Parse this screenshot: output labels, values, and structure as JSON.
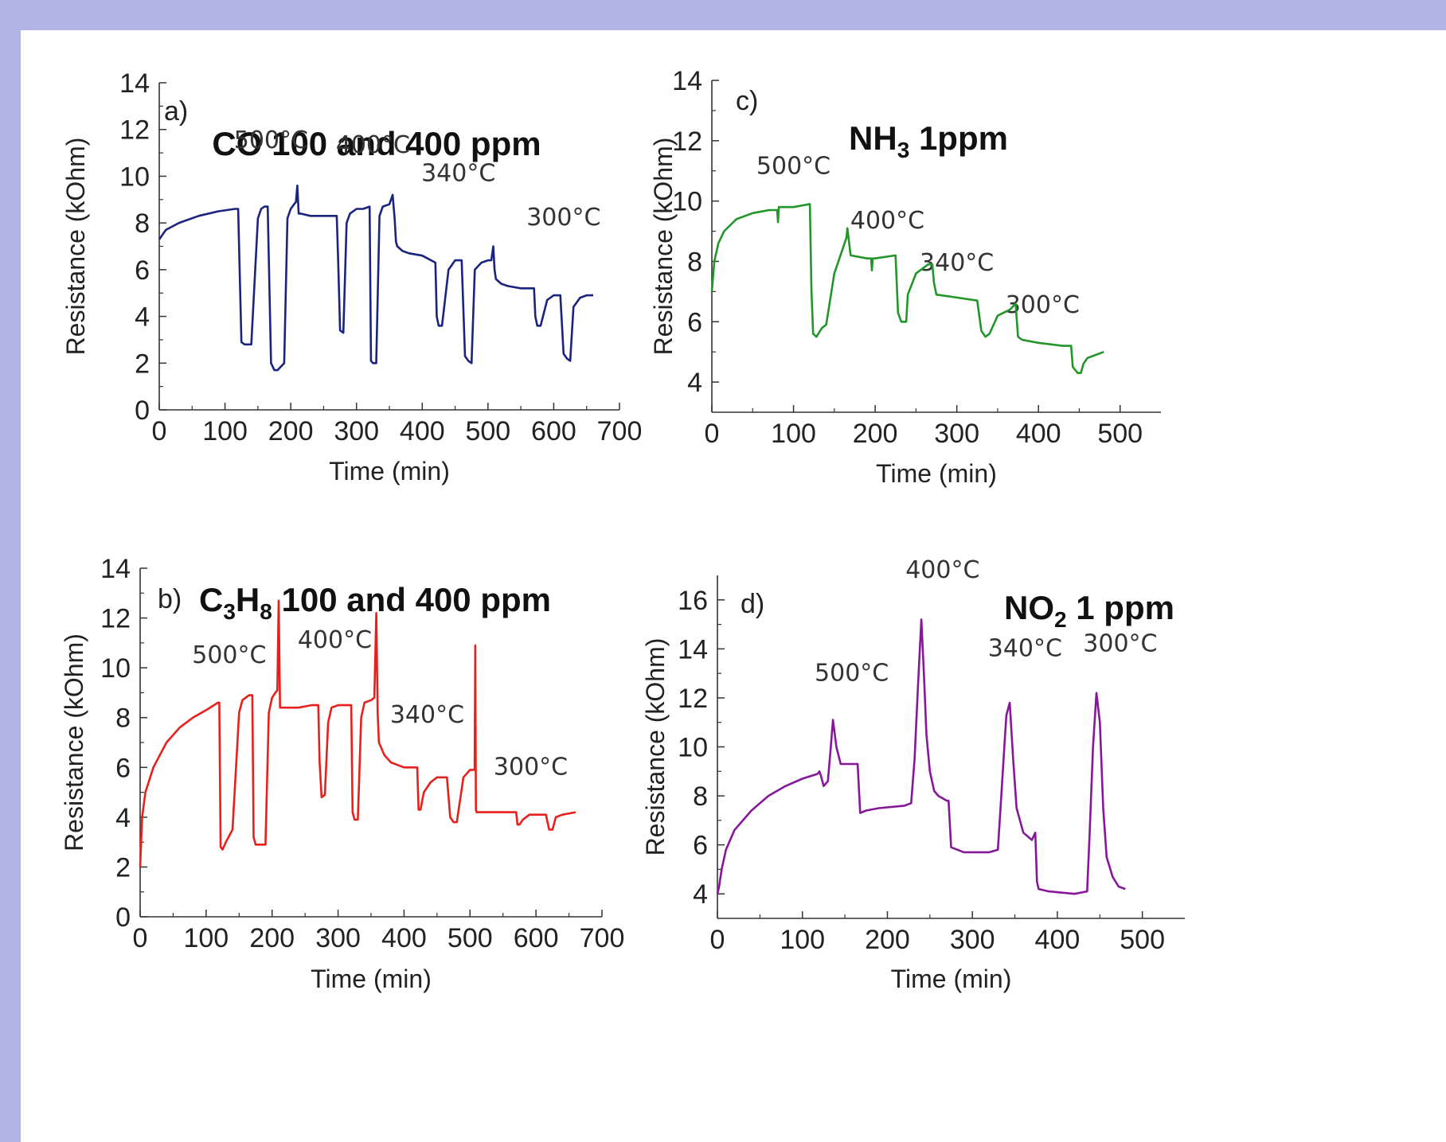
{
  "chart_data": [
    {
      "type": "line",
      "panel_label": "a)",
      "title_parts": [
        {
          "t": "CO 100 and 400 ppm",
          "sub": false
        }
      ],
      "xlabel": "Time (min)",
      "ylabel": "Resistance (kOhm)",
      "xlim": [
        0,
        700
      ],
      "ylim": [
        0,
        14
      ],
      "xticks": [
        0,
        100,
        200,
        300,
        400,
        500,
        600,
        700
      ],
      "yticks": [
        0,
        2,
        4,
        6,
        8,
        10,
        12,
        14
      ],
      "color": "#1a237e",
      "temperature_labels": [
        {
          "text": "500°C",
          "x": 170,
          "y": 11.2
        },
        {
          "text": "400°C",
          "x": 325,
          "y": 11.0
        },
        {
          "text": "340°C",
          "x": 455,
          "y": 9.8
        },
        {
          "text": "300°C",
          "x": 615,
          "y": 7.9
        }
      ],
      "x": [
        0,
        10,
        30,
        60,
        90,
        115,
        120,
        125,
        130,
        140,
        150,
        155,
        160,
        165,
        170,
        175,
        180,
        190,
        195,
        200,
        205,
        208,
        210,
        212,
        215,
        230,
        250,
        270,
        272,
        275,
        280,
        285,
        290,
        300,
        310,
        320,
        322,
        325,
        330,
        335,
        340,
        350,
        355,
        358,
        360,
        362,
        370,
        380,
        400,
        420,
        422,
        425,
        430,
        440,
        450,
        455,
        460,
        465,
        470,
        475,
        480,
        490,
        500,
        505,
        508,
        510,
        512,
        520,
        530,
        550,
        570,
        572,
        575,
        580,
        590,
        600,
        605,
        610,
        615,
        620,
        625,
        630,
        640,
        650,
        660
      ],
      "series": [
        {
          "values": [
            7.3,
            7.7,
            8.0,
            8.3,
            8.5,
            8.6,
            8.6,
            2.9,
            2.8,
            2.8,
            8.2,
            8.6,
            8.7,
            8.7,
            2.0,
            1.7,
            1.7,
            2.0,
            8.2,
            8.6,
            8.8,
            8.9,
            9.6,
            8.4,
            8.4,
            8.3,
            8.3,
            8.3,
            6.5,
            3.4,
            3.3,
            8.0,
            8.4,
            8.6,
            8.6,
            8.7,
            2.1,
            2.0,
            2.0,
            8.3,
            8.7,
            8.8,
            9.2,
            8.2,
            7.2,
            7.0,
            6.8,
            6.7,
            6.6,
            6.3,
            4.0,
            3.6,
            3.6,
            6.0,
            6.4,
            6.4,
            6.4,
            2.3,
            2.1,
            2.0,
            6.0,
            6.3,
            6.4,
            6.4,
            7.0,
            6.0,
            5.6,
            5.4,
            5.3,
            5.2,
            5.2,
            4.0,
            3.6,
            3.6,
            4.7,
            4.9,
            4.9,
            4.9,
            2.4,
            2.2,
            2.1,
            4.4,
            4.8,
            4.9,
            4.9
          ]
        }
      ]
    },
    {
      "type": "line",
      "panel_label": "b)",
      "title_parts": [
        {
          "t": "C",
          "sub": false
        },
        {
          "t": "3",
          "sub": true
        },
        {
          "t": "H",
          "sub": false
        },
        {
          "t": "8",
          "sub": true
        },
        {
          "t": " 100 and 400 ppm",
          "sub": false
        }
      ],
      "xlabel": "Time (min)",
      "ylabel": "Resistance (kOhm)",
      "xlim": [
        0,
        700
      ],
      "ylim": [
        0,
        14
      ],
      "xticks": [
        0,
        100,
        200,
        300,
        400,
        500,
        600,
        700
      ],
      "yticks": [
        0,
        2,
        4,
        6,
        8,
        10,
        12,
        14
      ],
      "color": "#e8201c",
      "temperature_labels": [
        {
          "text": "500°C",
          "x": 135,
          "y": 10.2
        },
        {
          "text": "400°C",
          "x": 295,
          "y": 10.8
        },
        {
          "text": "340°C",
          "x": 435,
          "y": 7.8
        },
        {
          "text": "300°C",
          "x": 592,
          "y": 5.7
        }
      ],
      "x": [
        0,
        3,
        8,
        20,
        40,
        60,
        80,
        100,
        118,
        120,
        122,
        125,
        130,
        140,
        150,
        155,
        160,
        165,
        170,
        172,
        175,
        180,
        190,
        195,
        200,
        205,
        208,
        210,
        212,
        220,
        240,
        260,
        270,
        272,
        275,
        280,
        285,
        290,
        300,
        310,
        320,
        322,
        325,
        330,
        335,
        340,
        350,
        355,
        358,
        360,
        362,
        370,
        380,
        400,
        420,
        422,
        425,
        430,
        440,
        450,
        460,
        465,
        470,
        475,
        480,
        490,
        500,
        507,
        508,
        509,
        510,
        512,
        520,
        540,
        570,
        572,
        575,
        580,
        590,
        600,
        610,
        615,
        620,
        625,
        630,
        640,
        660
      ],
      "series": [
        {
          "values": [
            2.0,
            4.0,
            5.0,
            6.0,
            7.0,
            7.6,
            8.0,
            8.3,
            8.6,
            8.6,
            2.8,
            2.7,
            3.0,
            3.5,
            8.2,
            8.7,
            8.8,
            8.9,
            8.9,
            3.2,
            2.9,
            2.9,
            2.9,
            8.2,
            8.8,
            9.0,
            9.1,
            12.7,
            8.4,
            8.4,
            8.4,
            8.5,
            8.5,
            6.2,
            4.8,
            4.9,
            7.8,
            8.4,
            8.5,
            8.5,
            8.5,
            4.2,
            3.9,
            3.9,
            8.0,
            8.6,
            8.7,
            8.8,
            12.2,
            8.2,
            7.0,
            6.5,
            6.2,
            6.0,
            6.0,
            4.3,
            4.3,
            5.0,
            5.4,
            5.6,
            5.6,
            5.6,
            4.0,
            3.8,
            3.8,
            5.6,
            5.9,
            5.9,
            10.9,
            4.3,
            4.2,
            4.2,
            4.2,
            4.2,
            4.2,
            3.7,
            3.7,
            3.9,
            4.1,
            4.1,
            4.1,
            4.1,
            3.5,
            3.5,
            4.0,
            4.1,
            4.2
          ]
        }
      ]
    },
    {
      "type": "line",
      "panel_label": "c)",
      "title_parts": [
        {
          "t": "NH",
          "sub": false
        },
        {
          "t": "3",
          "sub": true
        },
        {
          "t": " 1ppm",
          "sub": false
        }
      ],
      "xlabel": "Time (min)",
      "ylabel": "Resistance (kOhm)",
      "xlim": [
        0,
        550
      ],
      "ylim": [
        3,
        14
      ],
      "xticks": [
        0,
        100,
        200,
        300,
        400,
        500
      ],
      "yticks": [
        4,
        6,
        8,
        10,
        12,
        14
      ],
      "color": "#22962a",
      "temperature_labels": [
        {
          "text": "500°C",
          "x": 100,
          "y": 10.9
        },
        {
          "text": "400°C",
          "x": 215,
          "y": 9.1
        },
        {
          "text": "340°C",
          "x": 300,
          "y": 7.7
        },
        {
          "text": "300°C",
          "x": 405,
          "y": 6.3
        }
      ],
      "x": [
        0,
        3,
        8,
        15,
        30,
        50,
        70,
        80,
        81,
        82,
        100,
        120,
        122,
        124,
        128,
        135,
        140,
        150,
        160,
        165,
        166,
        170,
        190,
        195,
        196,
        197,
        200,
        225,
        228,
        232,
        238,
        240,
        250,
        265,
        270,
        272,
        275,
        300,
        325,
        330,
        335,
        340,
        350,
        365,
        372,
        375,
        380,
        400,
        430,
        440,
        442,
        448,
        452,
        455,
        460,
        470,
        480
      ],
      "series": [
        {
          "values": [
            7.0,
            8.0,
            8.6,
            9.0,
            9.4,
            9.6,
            9.7,
            9.7,
            9.3,
            9.8,
            9.8,
            9.9,
            7.0,
            5.6,
            5.5,
            5.8,
            5.9,
            7.6,
            8.4,
            8.8,
            9.1,
            8.2,
            8.1,
            8.1,
            7.7,
            8.1,
            8.1,
            8.2,
            6.3,
            6.0,
            6.0,
            6.9,
            7.6,
            7.9,
            7.9,
            7.3,
            6.9,
            6.8,
            6.7,
            5.7,
            5.5,
            5.6,
            6.2,
            6.4,
            6.6,
            5.5,
            5.4,
            5.3,
            5.2,
            5.2,
            4.5,
            4.3,
            4.3,
            4.6,
            4.8,
            4.9,
            5.0
          ]
        }
      ]
    },
    {
      "type": "line",
      "panel_label": "d)",
      "title_parts": [
        {
          "t": "NO",
          "sub": false
        },
        {
          "t": "2",
          "sub": true
        },
        {
          "t": " 1 ppm",
          "sub": false
        }
      ],
      "xlabel": "Time (min)",
      "ylabel": "Resistance (kOhm)",
      "xlim": [
        0,
        550
      ],
      "ylim": [
        3,
        17
      ],
      "xticks": [
        0,
        100,
        200,
        300,
        400,
        500
      ],
      "yticks": [
        4,
        6,
        8,
        10,
        12,
        14,
        16
      ],
      "color": "#86179a",
      "temperature_labels": [
        {
          "text": "500°C",
          "x": 158,
          "y": 12.7
        },
        {
          "text": "400°C",
          "x": 265,
          "y": 16.9
        },
        {
          "text": "340°C",
          "x": 362,
          "y": 13.7
        },
        {
          "text": "300°C",
          "x": 474,
          "y": 13.9
        }
      ],
      "x": [
        0,
        2,
        5,
        10,
        20,
        40,
        60,
        80,
        100,
        118,
        120,
        122,
        125,
        130,
        133,
        136,
        140,
        145,
        150,
        160,
        165,
        168,
        175,
        190,
        220,
        228,
        232,
        236,
        240,
        243,
        246,
        250,
        255,
        260,
        265,
        270,
        272,
        275,
        290,
        320,
        330,
        334,
        338,
        340,
        344,
        348,
        352,
        360,
        370,
        374,
        376,
        378,
        390,
        420,
        435,
        438,
        442,
        446,
        450,
        454,
        458,
        465,
        472,
        480
      ],
      "series": [
        {
          "values": [
            4.0,
            4.3,
            5.0,
            5.8,
            6.6,
            7.4,
            8.0,
            8.4,
            8.7,
            8.9,
            9.0,
            8.8,
            8.4,
            8.6,
            9.8,
            11.1,
            10.0,
            9.3,
            9.3,
            9.3,
            9.3,
            7.3,
            7.4,
            7.5,
            7.6,
            7.7,
            9.5,
            12.5,
            15.2,
            13.0,
            10.5,
            9.0,
            8.2,
            8.0,
            7.9,
            7.8,
            7.8,
            5.9,
            5.7,
            5.7,
            5.8,
            8.0,
            10.2,
            11.3,
            11.8,
            9.5,
            7.5,
            6.5,
            6.2,
            6.5,
            4.5,
            4.2,
            4.1,
            4.0,
            4.1,
            6.5,
            10.0,
            12.2,
            11.0,
            7.5,
            5.5,
            4.7,
            4.3,
            4.2
          ]
        }
      ]
    }
  ]
}
